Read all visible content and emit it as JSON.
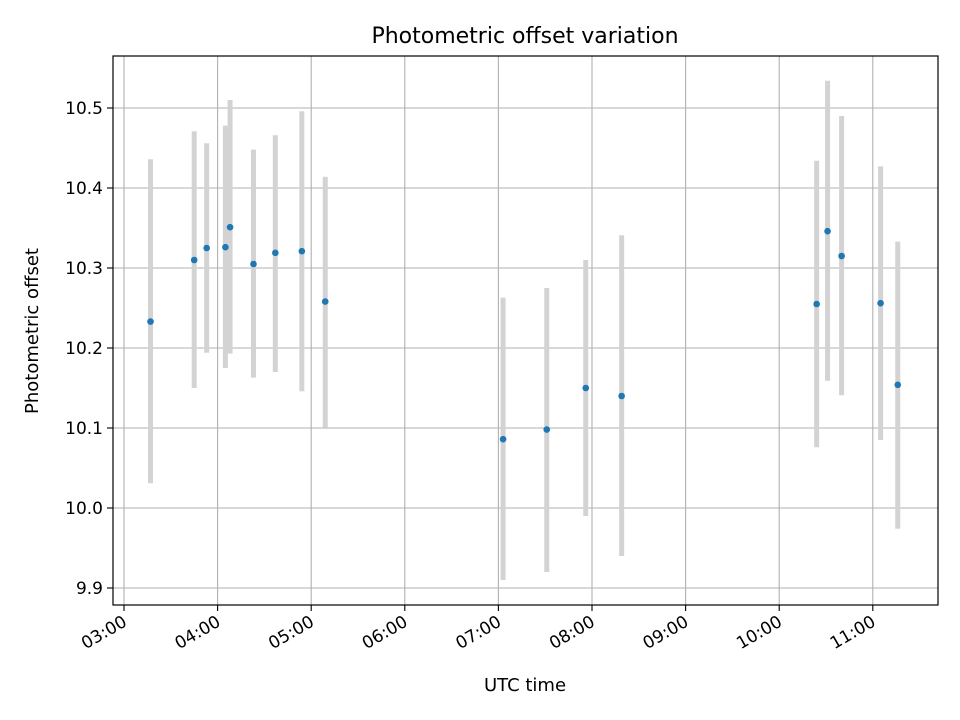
{
  "chart_data": {
    "type": "scatter",
    "title": "Photometric offset variation",
    "xlabel": "UTC time",
    "ylabel": "Photometric offset",
    "x_ticks": [
      "03:00",
      "04:00",
      "05:00",
      "06:00",
      "07:00",
      "08:00",
      "09:00",
      "10:00",
      "11:00"
    ],
    "y_ticks": [
      "9.9",
      "10.0",
      "10.1",
      "10.2",
      "10.3",
      "10.4",
      "10.5"
    ],
    "grid": true,
    "colors": {
      "marker": "#1f77b4",
      "errorbar": "#d3d3d3",
      "grid": "#b0b0b0"
    },
    "points": [
      {
        "time": "03:17",
        "value": 10.233,
        "err_low": 10.031,
        "err_high": 10.436
      },
      {
        "time": "03:45",
        "value": 10.31,
        "err_low": 10.15,
        "err_high": 10.471
      },
      {
        "time": "03:53",
        "value": 10.325,
        "err_low": 10.194,
        "err_high": 10.456
      },
      {
        "time": "04:05",
        "value": 10.326,
        "err_low": 10.175,
        "err_high": 10.478
      },
      {
        "time": "04:08",
        "value": 10.351,
        "err_low": 10.193,
        "err_high": 10.51
      },
      {
        "time": "04:23",
        "value": 10.305,
        "err_low": 10.163,
        "err_high": 10.448
      },
      {
        "time": "04:37",
        "value": 10.319,
        "err_low": 10.17,
        "err_high": 10.466
      },
      {
        "time": "04:54",
        "value": 10.321,
        "err_low": 10.146,
        "err_high": 10.496
      },
      {
        "time": "05:09",
        "value": 10.258,
        "err_low": 10.101,
        "err_high": 10.414
      },
      {
        "time": "07:03",
        "value": 10.086,
        "err_low": 9.91,
        "err_high": 10.263
      },
      {
        "time": "07:31",
        "value": 10.098,
        "err_low": 9.92,
        "err_high": 10.275
      },
      {
        "time": "07:56",
        "value": 10.15,
        "err_low": 9.99,
        "err_high": 10.31
      },
      {
        "time": "08:19",
        "value": 10.14,
        "err_low": 9.94,
        "err_high": 10.341
      },
      {
        "time": "10:24",
        "value": 10.255,
        "err_low": 10.076,
        "err_high": 10.434
      },
      {
        "time": "10:31",
        "value": 10.346,
        "err_low": 10.159,
        "err_high": 10.534
      },
      {
        "time": "10:40",
        "value": 10.315,
        "err_low": 10.141,
        "err_high": 10.49
      },
      {
        "time": "11:05",
        "value": 10.256,
        "err_low": 10.085,
        "err_high": 10.427
      },
      {
        "time": "11:16",
        "value": 10.154,
        "err_low": 9.974,
        "err_high": 10.333
      }
    ]
  }
}
